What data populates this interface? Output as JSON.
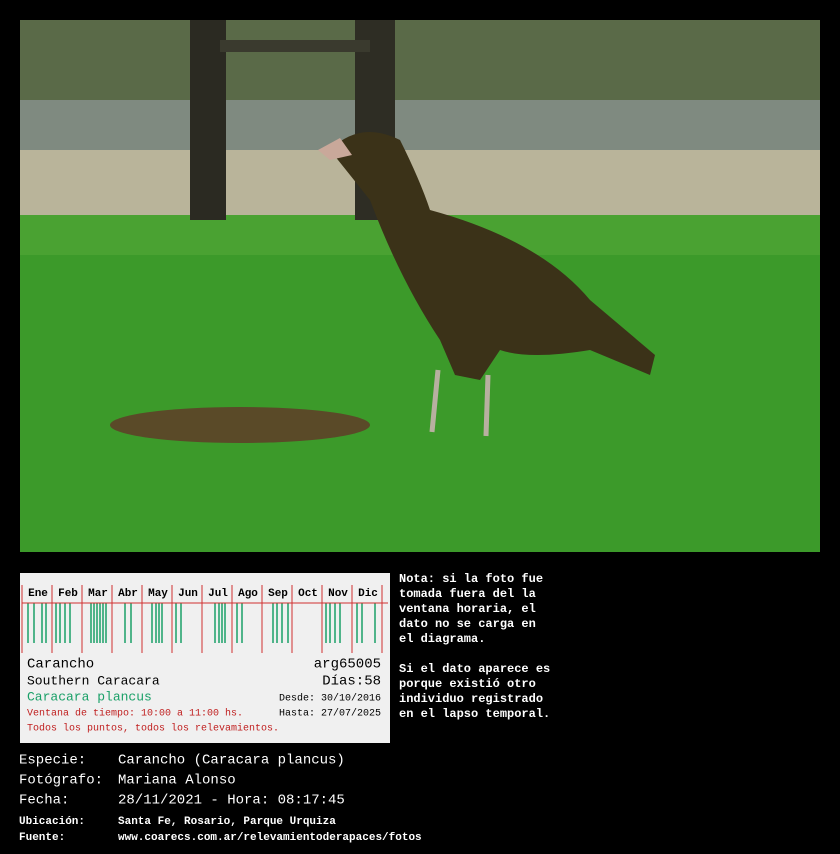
{
  "diagram": {
    "months": [
      "Ene",
      "Feb",
      "Mar",
      "Abr",
      "May",
      "Jun",
      "Jul",
      "Ago",
      "Sep",
      "Oct",
      "Nov",
      "Dic"
    ],
    "common_name": "Carancho",
    "code": "arg65005",
    "english_name": "Southern Caracara",
    "days": "Días:58",
    "scientific_name": "Caracara plancus",
    "from": "Desde: 30/10/2016",
    "to": "Hasta: 27/07/2025",
    "time_window": "Ventana de tiempo: 10:00 a 11:00 hs.",
    "scope": "Todos los puntos, todos los relevamientos."
  },
  "note": [
    "Nota: si la foto fue tomada fuera del la ventana horaria, el dato no se carga en el diagrama.",
    "Si el dato aparece es porque existió otro individuo registrado en el lapso temporal."
  ],
  "details": [
    {
      "label": "Especie:",
      "value": "Carancho (Caracara plancus)"
    },
    {
      "label": "Fotógrafo:",
      "value": "Mariana Alonso"
    },
    {
      "label": "Fecha:",
      "value": "28/11/2021 - Hora: 08:17:45"
    }
  ],
  "small_details": [
    {
      "label": "Ubicación:",
      "value": "Santa Fe, Rosario, Parque Urquiza"
    },
    {
      "label": "Fuente:",
      "value": "www.coarecs.com.ar/relevamientoderapaces/fotos"
    }
  ]
}
